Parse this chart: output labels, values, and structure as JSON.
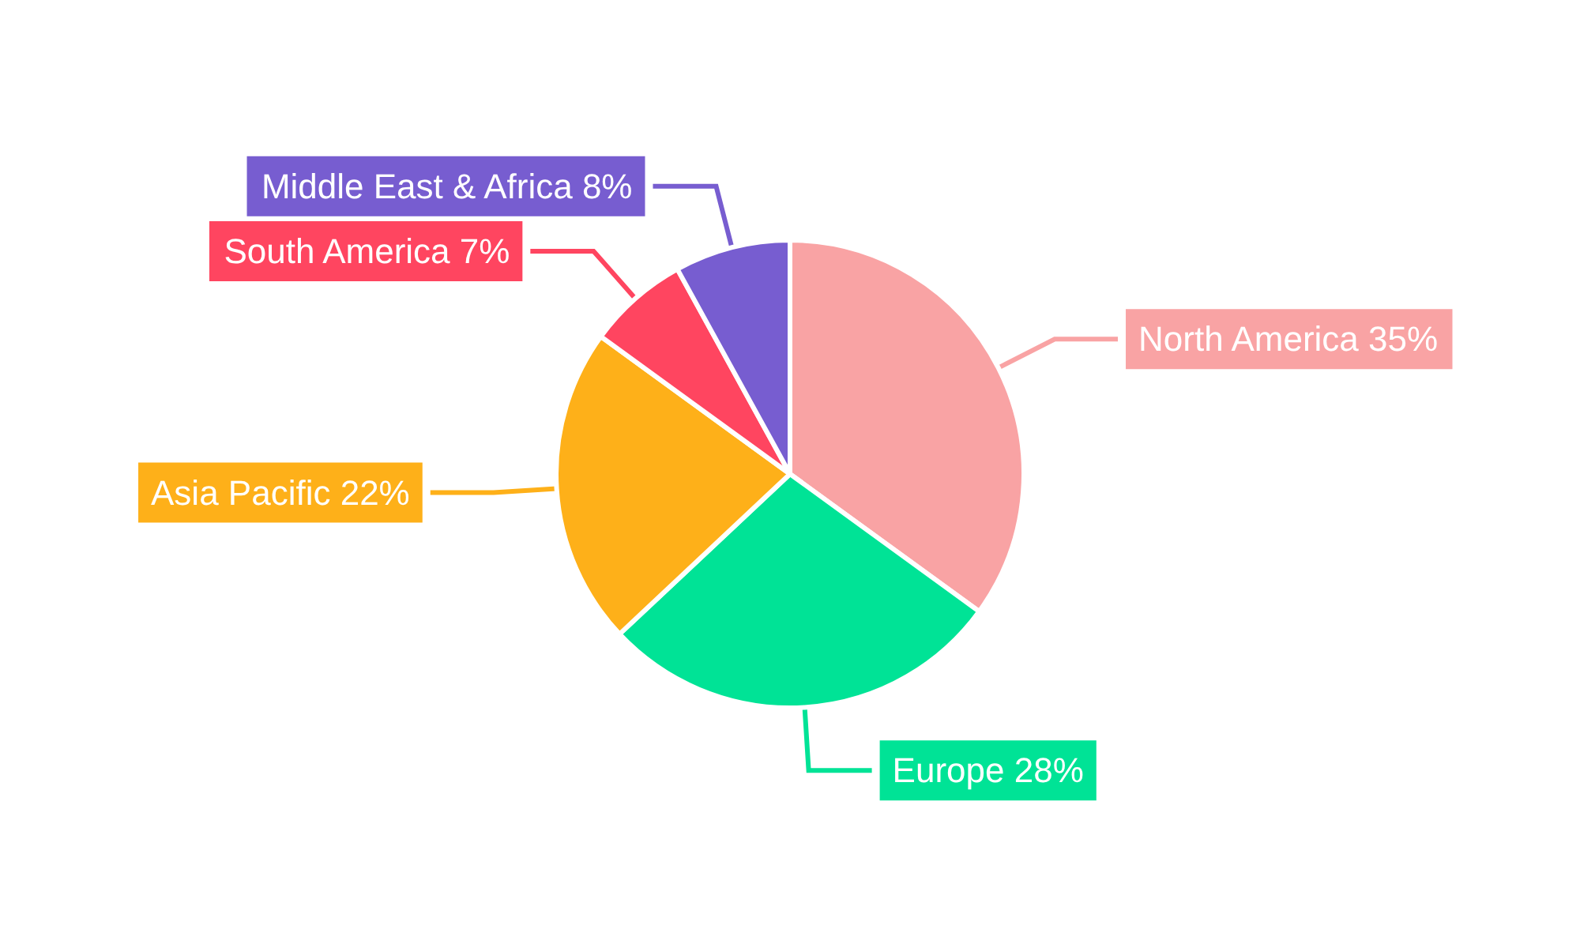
{
  "chart_data": {
    "type": "pie",
    "categories": [
      "North America",
      "Europe",
      "Asia Pacific",
      "South America",
      "Middle East & Africa"
    ],
    "values": [
      35,
      28,
      22,
      7,
      8
    ],
    "value_labels": [
      "35%",
      "28%",
      "22%",
      "7%",
      "8%"
    ],
    "colors": [
      "#f9a3a4",
      "#00e396",
      "#feb019",
      "#ff4560",
      "#775dd0"
    ],
    "legend": false
  }
}
